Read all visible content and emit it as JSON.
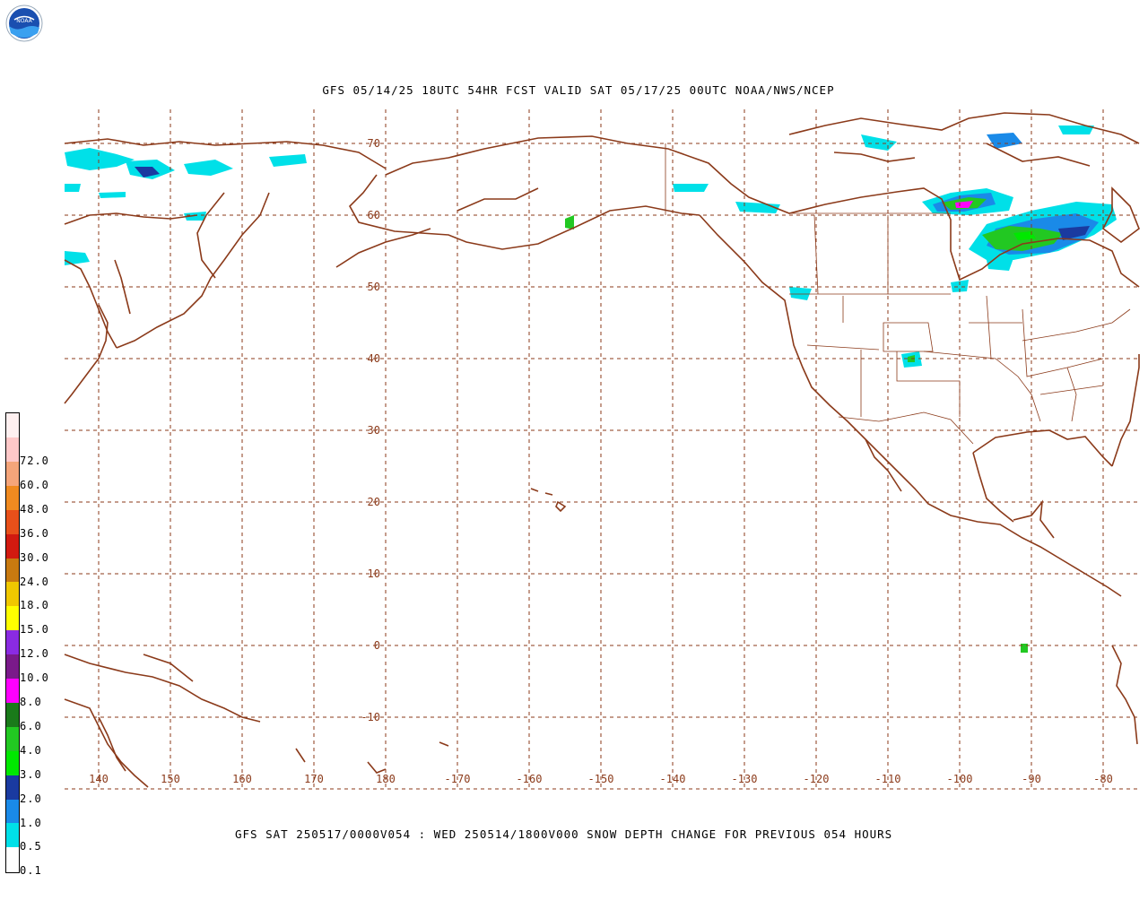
{
  "header": {
    "logo_text": "NOAA",
    "title": "GFS 05/14/25 18UTC 54HR FCST VALID SAT 05/17/25 00UTC NOAA/NWS/NCEP"
  },
  "footer": {
    "title": "GFS SAT 250517/0000V054 : WED 250514/1800V000 SNOW DEPTH CHANGE FOR PREVIOUS 054 HOURS"
  },
  "map": {
    "latitude_labels": [
      "70",
      "60",
      "50",
      "40",
      "30",
      "20",
      "10",
      "0",
      "-10"
    ],
    "longitude_labels": [
      "140",
      "150",
      "160",
      "170",
      "180",
      "-170",
      "-160",
      "-150",
      "-140",
      "-130",
      "-120",
      "-110",
      "-100",
      "-90",
      "-80"
    ],
    "line_color": "#8b3a1a"
  },
  "legend": {
    "entries": [
      {
        "label": "72.0",
        "color": "#ffc8c8"
      },
      {
        "label": "60.0",
        "color": "#f5a57a"
      },
      {
        "label": "48.0",
        "color": "#f08a20"
      },
      {
        "label": "36.0",
        "color": "#e8501a"
      },
      {
        "label": "30.0",
        "color": "#d21a10"
      },
      {
        "label": "24.0",
        "color": "#c87a10"
      },
      {
        "label": "18.0",
        "color": "#f0c800"
      },
      {
        "label": "15.0",
        "color": "#ffff00"
      },
      {
        "label": "12.0",
        "color": "#8a2be2"
      },
      {
        "label": "10.0",
        "color": "#7a1a8a"
      },
      {
        "label": "8.0",
        "color": "#ff00ff"
      },
      {
        "label": "6.0",
        "color": "#1a7a1a"
      },
      {
        "label": "4.0",
        "color": "#22c822"
      },
      {
        "label": "3.0",
        "color": "#00e800"
      },
      {
        "label": "2.0",
        "color": "#1a3aa0"
      },
      {
        "label": "1.0",
        "color": "#1a8ae8"
      },
      {
        "label": "0.5",
        "color": "#00e0e8"
      },
      {
        "label": "0.1",
        "color": "#ffffff"
      }
    ],
    "top_color": "#fff0f0"
  }
}
